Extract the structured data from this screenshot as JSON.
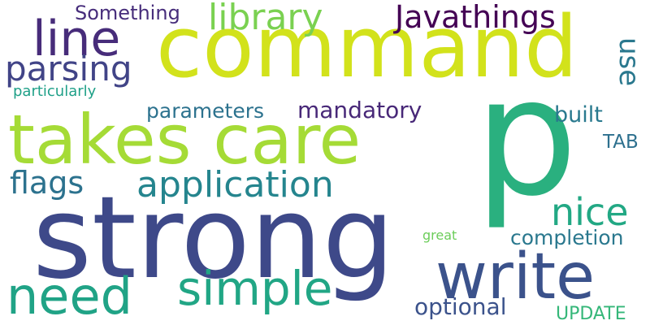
{
  "words": [
    {
      "text": "command",
      "color": "#d2e21b"
    },
    {
      "text": "p",
      "color": "#2ab07f"
    },
    {
      "text": "strong",
      "color": "#3e4989"
    },
    {
      "text": "takes care",
      "color": "#a5db36"
    },
    {
      "text": "line",
      "color": "#472c7a"
    },
    {
      "text": "write",
      "color": "#3b528b"
    },
    {
      "text": "need",
      "color": "#20a386"
    },
    {
      "text": "simple",
      "color": "#21a685"
    },
    {
      "text": "application",
      "color": "#25858e"
    },
    {
      "text": "library",
      "color": "#7ad151"
    },
    {
      "text": "Javathings",
      "color": "#440154"
    },
    {
      "text": "parsing",
      "color": "#414487"
    },
    {
      "text": "flags",
      "color": "#2c728e"
    },
    {
      "text": "nice",
      "color": "#22a884"
    },
    {
      "text": "use",
      "color": "#2a788e"
    },
    {
      "text": "optional",
      "color": "#3b528b"
    },
    {
      "text": "mandatory",
      "color": "#482878"
    },
    {
      "text": "parameters",
      "color": "#2c728e"
    },
    {
      "text": "Something",
      "color": "#472d7b"
    },
    {
      "text": "built",
      "color": "#29798e"
    },
    {
      "text": "completion",
      "color": "#2a788e"
    },
    {
      "text": "TAB",
      "color": "#2d708e"
    },
    {
      "text": "UPDATE",
      "color": "#35b779"
    },
    {
      "text": "particularly",
      "color": "#1fa088"
    },
    {
      "text": "great",
      "color": "#6ccd5a"
    }
  ]
}
